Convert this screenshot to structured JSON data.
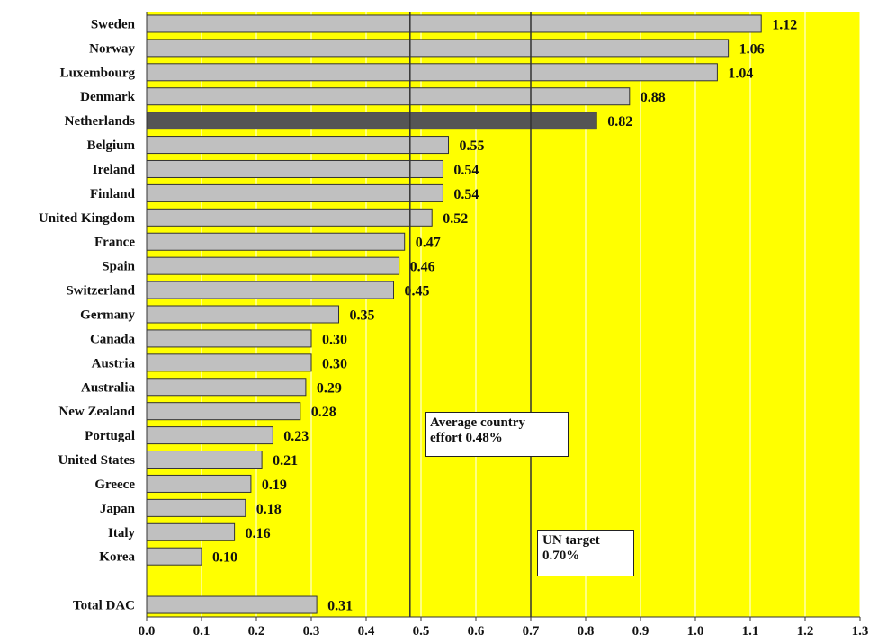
{
  "chart_data": {
    "type": "bar",
    "orientation": "horizontal",
    "categories": [
      "Sweden",
      "Norway",
      "Luxembourg",
      "Denmark",
      "Netherlands",
      "Belgium",
      "Ireland",
      "Finland",
      "United Kingdom",
      "France",
      "Spain",
      "Switzerland",
      "Germany",
      "Canada",
      "Austria",
      "Australia",
      "New Zealand",
      "Portugal",
      "United States",
      "Greece",
      "Japan",
      "Italy",
      "Korea",
      "",
      "Total DAC"
    ],
    "values": [
      1.12,
      1.06,
      1.04,
      0.88,
      0.82,
      0.55,
      0.54,
      0.54,
      0.52,
      0.47,
      0.46,
      0.45,
      0.35,
      0.3,
      0.3,
      0.29,
      0.28,
      0.23,
      0.21,
      0.19,
      0.18,
      0.16,
      0.1,
      null,
      0.31
    ],
    "value_labels": [
      "1.12",
      "1.06",
      "1.04",
      "0.88",
      "0.82",
      "0.55",
      "0.54",
      "0.54",
      "0.52",
      "0.47",
      "0.46",
      "0.45",
      "0.35",
      "0.30",
      "0.30",
      "0.29",
      "0.28",
      "0.23",
      "0.21",
      "0.19",
      "0.18",
      "0.16",
      "0.10",
      "",
      "0.31"
    ],
    "highlight_category": "Netherlands",
    "xlim": [
      0.0,
      1.3
    ],
    "x_ticks": [
      "0.0",
      "0.1",
      "0.2",
      "0.3",
      "0.4",
      "0.5",
      "0.6",
      "0.7",
      "0.8",
      "0.9",
      "1.0",
      "1.1",
      "1.2",
      "1.3"
    ],
    "grid": true,
    "reference_lines": [
      {
        "value": 0.48,
        "label_lines": [
          "Average country",
          "effort 0.48%"
        ]
      },
      {
        "value": 0.7,
        "label_lines": [
          "UN target",
          "0.70%"
        ]
      }
    ],
    "colors": {
      "plot_background": "#ffff00",
      "bar": "#c0c0c0",
      "bar_highlight": "#555555",
      "bar_border": "#333333",
      "grid": "#ffffff",
      "reference_line": "#333333"
    }
  }
}
